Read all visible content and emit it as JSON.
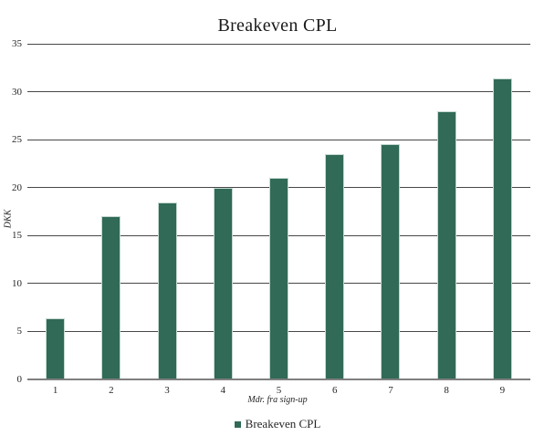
{
  "chart_data": {
    "type": "bar",
    "title": "Breakeven CPL",
    "xlabel": "Mdr. fra sign-up",
    "ylabel": "DKK",
    "legend_label": "Breakeven CPL",
    "legend_position": "bottom-center",
    "categories": [
      "1",
      "2",
      "3",
      "4",
      "5",
      "6",
      "7",
      "8",
      "9"
    ],
    "values": [
      6.4,
      17.0,
      18.5,
      20.0,
      21.0,
      23.5,
      24.5,
      28.0,
      31.4
    ],
    "ylim": [
      0,
      35
    ],
    "ytick_step": 5,
    "grid": "horizontal",
    "colors": {
      "bar_fill": "#316A57",
      "bar_edge": "#C4D9D0",
      "gridline": "#474747",
      "axis_line": "#7F7F7F",
      "text": "#262626",
      "background": "#FFFFFF"
    }
  }
}
